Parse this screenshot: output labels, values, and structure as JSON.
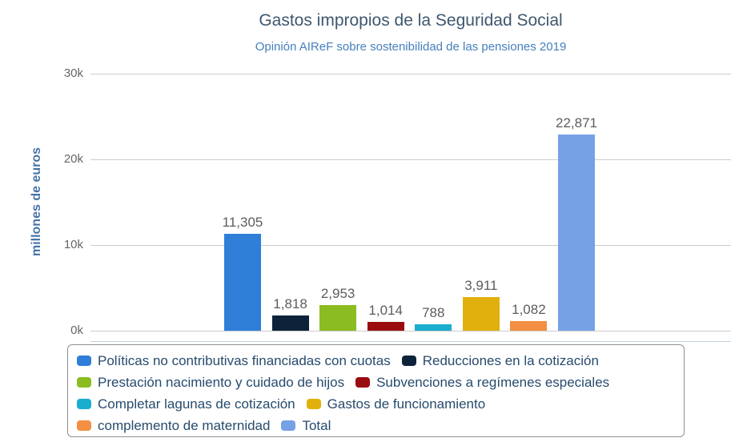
{
  "title": "Gastos impropios de la Seguridad Social",
  "subtitle": "Opinión AIReF sobre sostenibilidad de las pensiones 2019",
  "y_axis": {
    "title": "millones de euros"
  },
  "chart_data": {
    "type": "bar",
    "title": "Gastos impropios de la Seguridad Social",
    "subtitle": "Opinión AIReF sobre sostenibilidad de las pensiones 2019",
    "xlabel": "",
    "ylabel": "millones de euros",
    "ylim": [
      0,
      30000
    ],
    "yticks": [
      0,
      10000,
      20000,
      30000
    ],
    "ytick_labels": [
      "0k",
      "10k",
      "20k",
      "30k"
    ],
    "grid": true,
    "legend_position": "bottom",
    "categories": [
      "Políticas no contributivas financiadas con cuotas",
      "Reducciones en la cotización",
      "Prestación nacimiento y cuidado de hijos",
      "Subvenciones a regímenes especiales",
      "Completar lagunas de cotización",
      "Gastos de funcionamiento",
      "complemento de maternidad",
      "Total"
    ],
    "values": [
      11305,
      1818,
      2953,
      1014,
      788,
      3911,
      1082,
      22871
    ],
    "value_labels": [
      "11,305",
      "1,818",
      "2,953",
      "1,014",
      "788",
      "3,911",
      "1,082",
      "22,871"
    ],
    "colors": [
      "#2f7ed8",
      "#0d233a",
      "#8bbc21",
      "#9a0b10",
      "#1aadce",
      "#e0b10d",
      "#f28f43",
      "#77a1e5"
    ]
  },
  "colors": {
    "title": "#3e576f",
    "subtitle": "#4580bd",
    "axis_title": "#4572a7",
    "tick_label": "#666666",
    "value_label": "#5c5c5c",
    "grid_line": "#cccccc",
    "axis_line": "#c0d0e0",
    "legend_text": "#274b6d",
    "legend_border": "#909090",
    "background": "#ffffff"
  }
}
